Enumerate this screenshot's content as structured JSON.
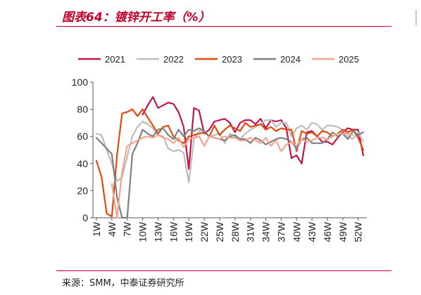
{
  "header": {
    "title": "图表64：镀锌开工率（%）"
  },
  "footer": {
    "source": "来源：SMM，中泰证券研究所"
  },
  "chart_data": {
    "type": "line",
    "title": "",
    "xlabel": "",
    "ylabel": "",
    "ylim": [
      0,
      100
    ],
    "yticks": [
      0,
      20,
      40,
      60,
      80,
      100
    ],
    "grid": false,
    "legend_position": "top",
    "x": [
      "1W",
      "2W",
      "3W",
      "4W",
      "5W",
      "6W",
      "7W",
      "8W",
      "9W",
      "10W",
      "11W",
      "12W",
      "13W",
      "14W",
      "15W",
      "16W",
      "17W",
      "18W",
      "19W",
      "20W",
      "21W",
      "22W",
      "23W",
      "24W",
      "25W",
      "26W",
      "27W",
      "28W",
      "29W",
      "30W",
      "31W",
      "32W",
      "33W",
      "34W",
      "35W",
      "36W",
      "37W",
      "38W",
      "39W",
      "40W",
      "41W",
      "42W",
      "43W",
      "44W",
      "45W",
      "46W",
      "47W",
      "48W",
      "49W",
      "50W",
      "51W",
      "52W",
      "53W"
    ],
    "xtick_labels": [
      "1W",
      "4W",
      "7W",
      "10W",
      "13W",
      "16W",
      "19W",
      "22W",
      "25W",
      "28W",
      "31W",
      "34W",
      "37W",
      "40W",
      "43W",
      "46W",
      "49W",
      "52W"
    ],
    "series": [
      {
        "name": "2021",
        "color": "#c0144c",
        "values": [
          null,
          null,
          null,
          null,
          null,
          null,
          null,
          null,
          null,
          76,
          83,
          89,
          81,
          83,
          85,
          84,
          78,
          67,
          36,
          81,
          79,
          62,
          65,
          71,
          72,
          73,
          70,
          63,
          70,
          72,
          72,
          69,
          73,
          66,
          72,
          71,
          72,
          66,
          44,
          46,
          40,
          63,
          64,
          60,
          56,
          56,
          54,
          59,
          63,
          66,
          65,
          65,
          46
        ]
      },
      {
        "name": "2022",
        "color": "#bdbdbd",
        "values": [
          62,
          61,
          50,
          40,
          27,
          30,
          45,
          60,
          67,
          71,
          69,
          66,
          61,
          60,
          51,
          49,
          50,
          48,
          26,
          58,
          64,
          64,
          60,
          61,
          62,
          55,
          62,
          60,
          58,
          62,
          65,
          67,
          69,
          72,
          72,
          67,
          70,
          70,
          60,
          66,
          68,
          65,
          70,
          69,
          65,
          68,
          68,
          67,
          65,
          60,
          58,
          63,
          56
        ]
      },
      {
        "name": "2023",
        "color": "#e04a10",
        "values": [
          42,
          30,
          3,
          1,
          46,
          77,
          78,
          80,
          75,
          80,
          74,
          68,
          62,
          67,
          68,
          60,
          57,
          55,
          60,
          61,
          62,
          63,
          60,
          68,
          61,
          65,
          68,
          66,
          64,
          70,
          67,
          68,
          69,
          65,
          67,
          64,
          66,
          65,
          65,
          49,
          64,
          62,
          63,
          60,
          64,
          63,
          60,
          62,
          65,
          63,
          65,
          59,
          50
        ]
      },
      {
        "name": "2024",
        "color": "#808080",
        "values": [
          59,
          55,
          51,
          47,
          15,
          0,
          0,
          47,
          55,
          65,
          62,
          60,
          65,
          66,
          61,
          58,
          65,
          60,
          65,
          64,
          66,
          64,
          60,
          59,
          58,
          57,
          60,
          61,
          58,
          58,
          55,
          59,
          57,
          54,
          56,
          58,
          59,
          58,
          56,
          51,
          58,
          59,
          55,
          55,
          55,
          58,
          63,
          60,
          62,
          58,
          64,
          61,
          63
        ]
      },
      {
        "name": "2025",
        "color": "#f4a48c",
        "values": [
          null,
          null,
          null,
          25,
          0,
          34,
          53,
          55,
          57,
          59,
          60,
          59,
          61,
          59,
          58,
          55,
          59,
          52,
          58,
          59,
          60,
          53,
          60,
          59,
          58,
          60,
          59,
          59,
          57,
          57,
          59,
          57,
          55,
          59,
          53,
          57,
          49,
          54,
          56,
          53,
          58,
          56,
          57,
          59,
          59,
          58,
          60,
          62,
          62,
          62,
          61,
          null,
          null
        ]
      }
    ]
  }
}
